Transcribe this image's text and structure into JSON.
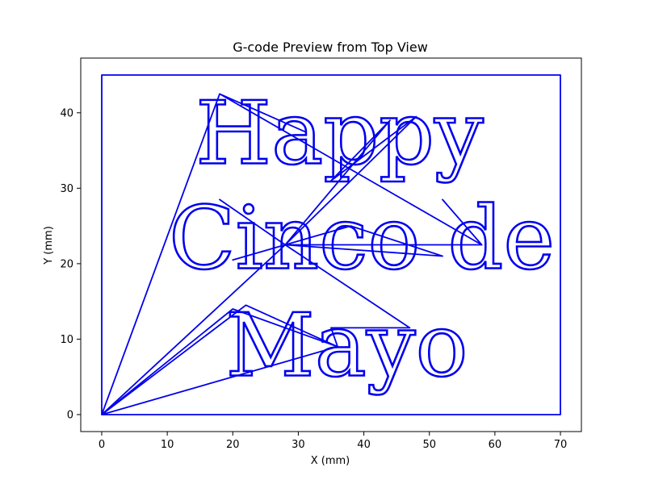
{
  "chart_data": {
    "type": "line",
    "title": "G-code Preview from Top View",
    "xlabel": "X (mm)",
    "ylabel": "Y (mm)",
    "xlim": [
      -3.2,
      73.2
    ],
    "ylim": [
      -2.25,
      47.25
    ],
    "xticks": [
      0,
      10,
      20,
      30,
      40,
      50,
      60,
      70
    ],
    "yticks": [
      0,
      10,
      20,
      30,
      40
    ],
    "color": "#0000ee",
    "grid": false,
    "text_lines": [
      {
        "text": "Happy",
        "x": 36.3,
        "y": 33.3,
        "size_mm": 11.5
      },
      {
        "text": "Cinco de",
        "x": 39.7,
        "y": 19.4,
        "size_mm": 11.5
      },
      {
        "text": "Mayo",
        "x": 37.4,
        "y": 5.2,
        "size_mm": 11.5
      }
    ],
    "series": [
      {
        "points": [
          [
            0,
            0
          ],
          [
            0,
            45
          ],
          [
            70,
            45
          ],
          [
            70,
            0
          ],
          [
            0,
            0
          ],
          [
            18,
            42.5
          ],
          [
            31,
            37.5
          ],
          [
            18,
            42.5
          ],
          [
            58,
            22.5
          ],
          [
            52,
            28.5
          ],
          [
            58,
            22.5
          ],
          [
            28,
            22.5
          ],
          [
            18,
            28.5
          ],
          [
            28,
            22.5
          ],
          [
            47,
            11.5
          ],
          [
            28,
            22.5
          ],
          [
            52,
            21
          ],
          [
            38,
            25
          ],
          [
            28,
            22.5
          ],
          [
            20,
            20.5
          ],
          [
            28,
            22.5
          ],
          [
            48,
            39.5
          ],
          [
            35,
            31
          ],
          [
            44,
            39
          ],
          [
            28,
            22.5
          ],
          [
            0,
            0
          ],
          [
            20,
            14
          ],
          [
            36,
            9
          ],
          [
            22,
            14.5
          ],
          [
            0,
            0
          ],
          [
            36,
            9
          ],
          [
            35,
            11.5
          ],
          [
            47,
            11.5
          ]
        ]
      }
    ]
  }
}
